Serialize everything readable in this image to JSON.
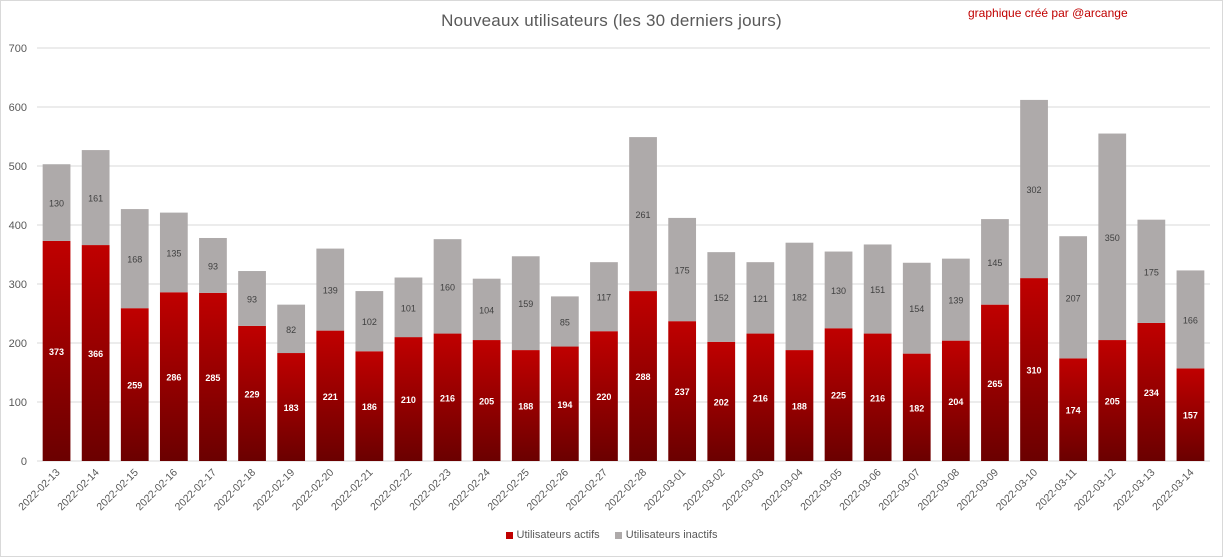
{
  "chart_title": "Nouveaux utilisateurs  (les 30 derniers  jours)",
  "credit": "graphique créé par @arcange",
  "colors": {
    "active": "#c00000",
    "active_dark": "#6b0000",
    "inactive": "#aeaaaa",
    "grid": "#d9d9d9",
    "text": "#595959"
  },
  "legend": {
    "active_label": "Utilisateurs actifs",
    "inactive_label": "Utilisateurs inactifs"
  },
  "chart_data": {
    "type": "bar",
    "stacked": true,
    "title": "Nouveaux utilisateurs  (les 30 derniers  jours)",
    "ylim": [
      0,
      700
    ],
    "yticks": [
      0,
      100,
      200,
      300,
      400,
      500,
      600,
      700
    ],
    "grid": true,
    "legend_position": "bottom",
    "categories": [
      "2022-02-13",
      "2022-02-14",
      "2022-02-15",
      "2022-02-16",
      "2022-02-17",
      "2022-02-18",
      "2022-02-19",
      "2022-02-20",
      "2022-02-21",
      "2022-02-22",
      "2022-02-23",
      "2022-02-24",
      "2022-02-25",
      "2022-02-26",
      "2022-02-27",
      "2022-02-28",
      "2022-03-01",
      "2022-03-02",
      "2022-03-03",
      "2022-03-04",
      "2022-03-05",
      "2022-03-06",
      "2022-03-07",
      "2022-03-08",
      "2022-03-09",
      "2022-03-10",
      "2022-03-11",
      "2022-03-12",
      "2022-03-13",
      "2022-03-14"
    ],
    "series": [
      {
        "name": "Utilisateurs actifs",
        "values": [
          373,
          366,
          259,
          286,
          285,
          229,
          183,
          221,
          186,
          210,
          216,
          205,
          188,
          194,
          220,
          288,
          237,
          202,
          216,
          188,
          225,
          216,
          182,
          204,
          265,
          310,
          174,
          205,
          234,
          157
        ]
      },
      {
        "name": "Utilisateurs inactifs",
        "values": [
          130,
          161,
          168,
          135,
          93,
          93,
          82,
          139,
          102,
          101,
          160,
          104,
          159,
          85,
          117,
          261,
          175,
          152,
          121,
          182,
          130,
          151,
          154,
          139,
          145,
          302,
          207,
          350,
          175,
          166
        ]
      }
    ]
  }
}
